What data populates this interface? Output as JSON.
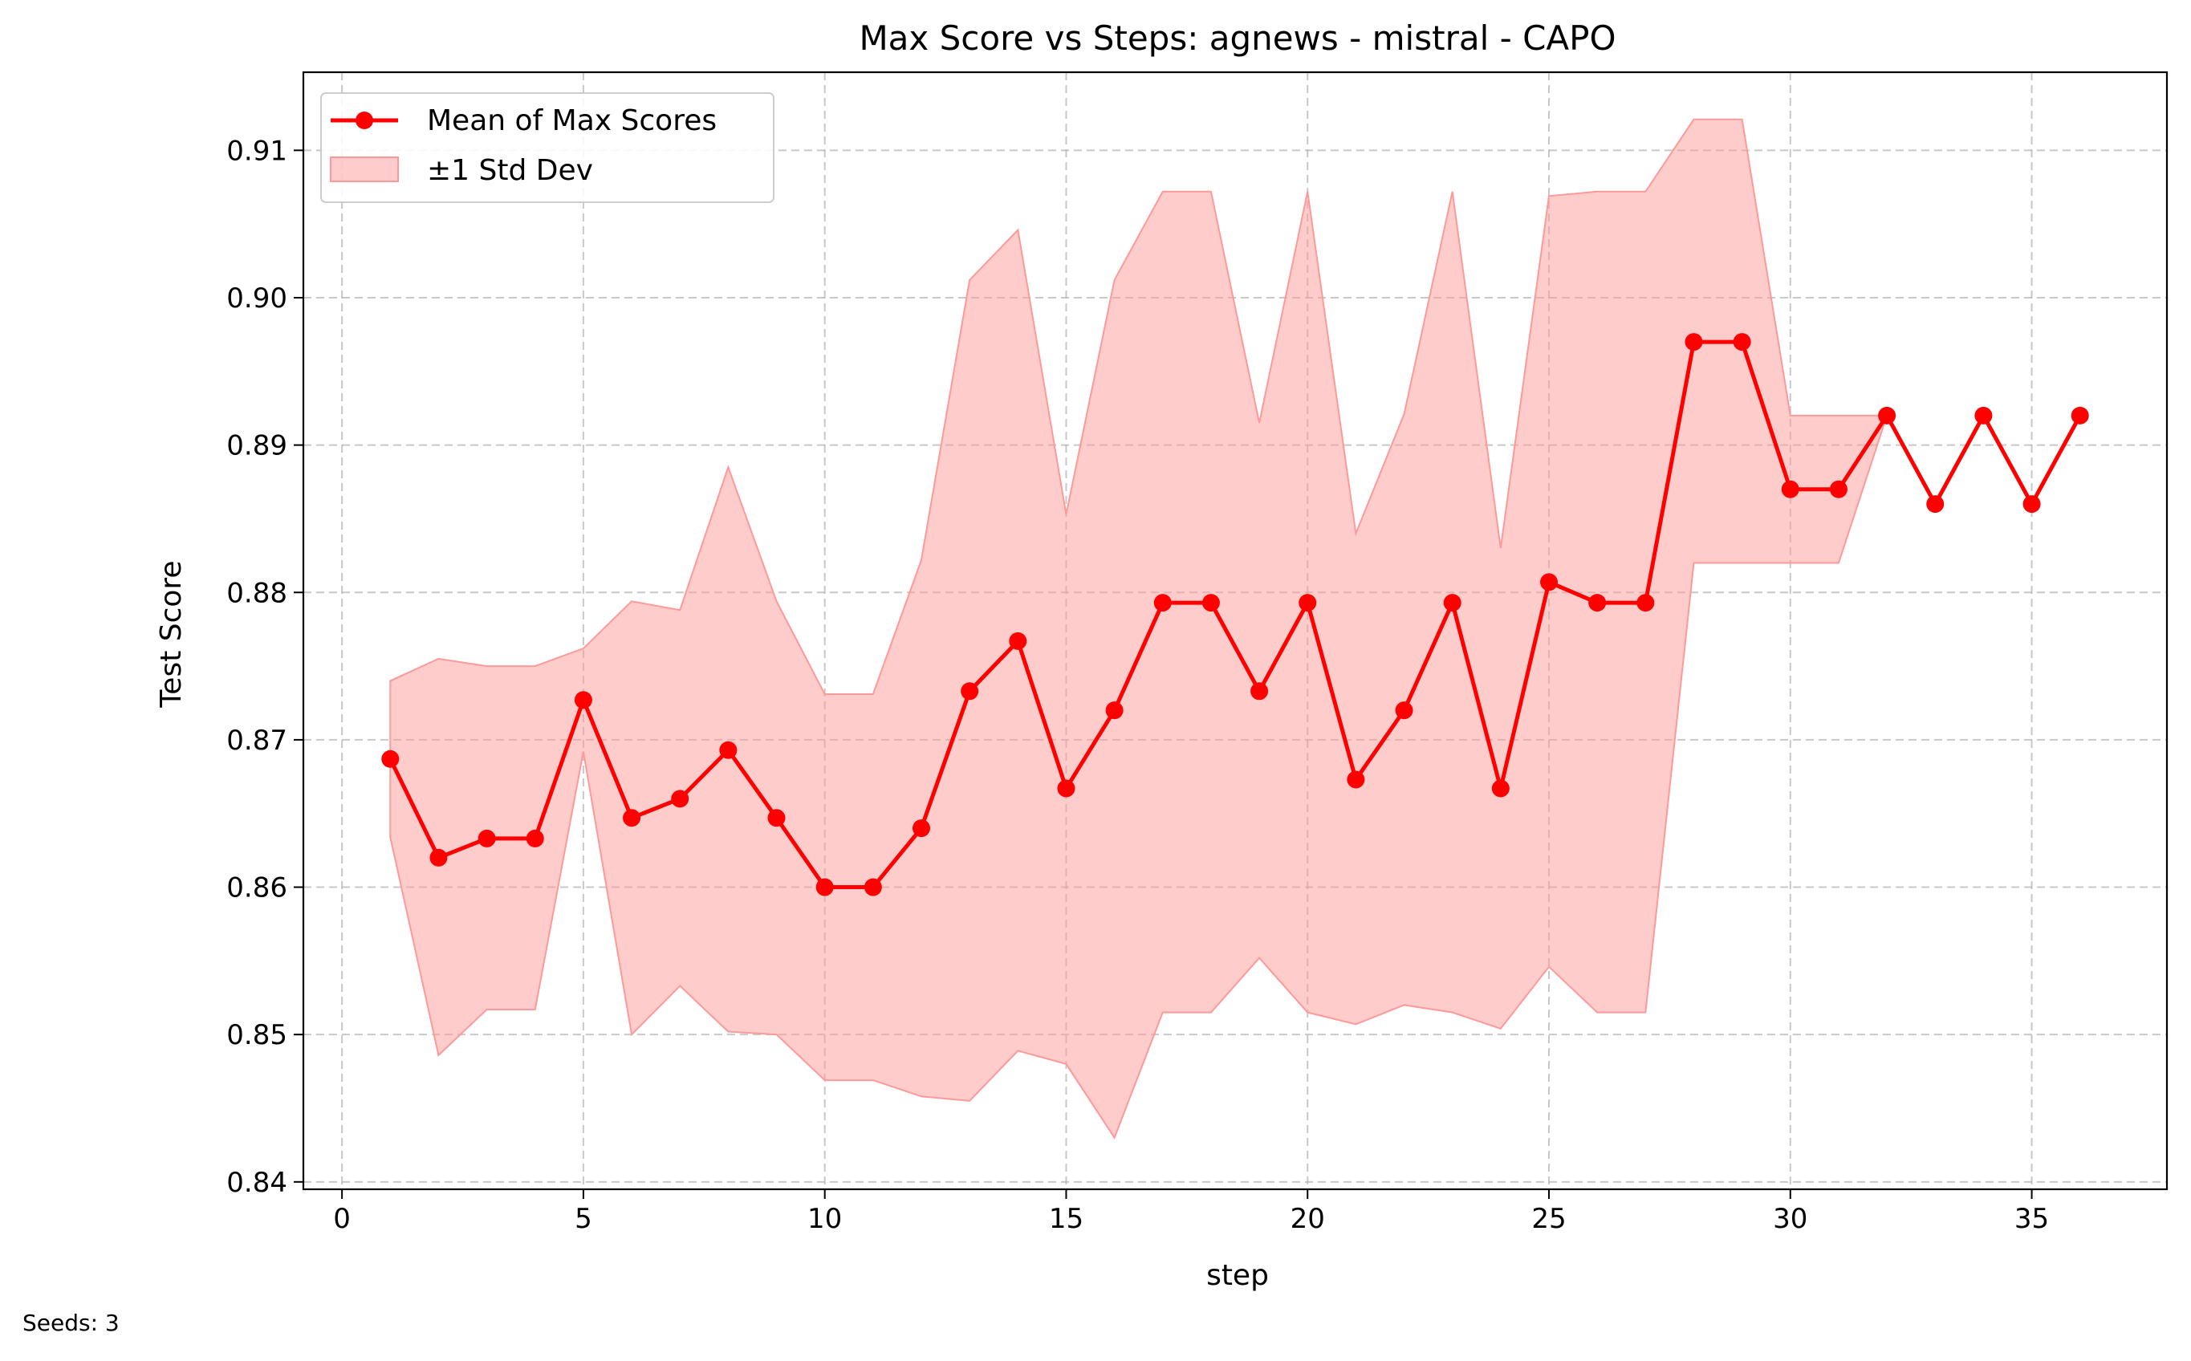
{
  "chart_data": {
    "type": "line",
    "title": "Max Score vs Steps: agnews - mistral - CAPO",
    "xlabel": "step",
    "ylabel": "Test Score",
    "xlim": [
      -0.8,
      37.8
    ],
    "ylim": [
      0.8395,
      0.9153
    ],
    "xticks": [
      0,
      5,
      10,
      15,
      20,
      25,
      30,
      35
    ],
    "yticks": [
      0.84,
      0.85,
      0.86,
      0.87,
      0.88,
      0.89,
      0.9,
      0.91
    ],
    "ytick_labels": [
      "0.84",
      "0.85",
      "0.86",
      "0.87",
      "0.88",
      "0.89",
      "0.90",
      "0.91"
    ],
    "grid": true,
    "legend_position": "top-left",
    "x": [
      1,
      2,
      3,
      4,
      5,
      6,
      7,
      8,
      9,
      10,
      11,
      12,
      13,
      14,
      15,
      16,
      17,
      18,
      19,
      20,
      21,
      22,
      23,
      24,
      25,
      26,
      27,
      28,
      29,
      30,
      31,
      32,
      33,
      34,
      35,
      36
    ],
    "series": [
      {
        "name": "Mean of Max Scores",
        "color": "#ff0000",
        "values": [
          0.8687,
          0.862,
          0.8633,
          0.8633,
          0.8727,
          0.8647,
          0.866,
          0.8693,
          0.8647,
          0.86,
          0.86,
          0.864,
          0.8733,
          0.8767,
          0.8667,
          0.872,
          0.8793,
          0.8793,
          0.8733,
          0.8793,
          0.8673,
          0.872,
          0.8793,
          0.8667,
          0.8807,
          0.8793,
          0.8793,
          0.897,
          0.897,
          0.887,
          0.887,
          0.892,
          0.886,
          0.892,
          0.886,
          0.892
        ]
      }
    ],
    "band": {
      "name": "±1 Std Dev",
      "color": "#ff9999",
      "upper": [
        0.874,
        0.8755,
        0.875,
        0.875,
        0.8762,
        0.8794,
        0.8788,
        0.8885,
        0.8794,
        0.8731,
        0.8731,
        0.8822,
        0.9012,
        0.9046,
        0.8853,
        0.9012,
        0.9072,
        0.9072,
        0.8915,
        0.9072,
        0.884,
        0.8921,
        0.9072,
        0.883,
        0.9069,
        0.9072,
        0.9072,
        0.9121,
        0.9121,
        0.892,
        0.892,
        0.892,
        null,
        null,
        null,
        null
      ],
      "lower": [
        0.8634,
        0.8486,
        0.8517,
        0.8517,
        0.8692,
        0.85,
        0.8533,
        0.8502,
        0.85,
        0.8469,
        0.8469,
        0.8458,
        0.8455,
        0.8489,
        0.848,
        0.843,
        0.8515,
        0.8515,
        0.8552,
        0.8515,
        0.8507,
        0.852,
        0.8515,
        0.8504,
        0.8546,
        0.8515,
        0.8515,
        0.882,
        0.882,
        0.882,
        0.882,
        0.892,
        null,
        null,
        null,
        null
      ]
    }
  },
  "legend": {
    "mean_label": "Mean of Max Scores",
    "band_label": "±1 Std Dev"
  },
  "footnote": "Seeds: 3"
}
